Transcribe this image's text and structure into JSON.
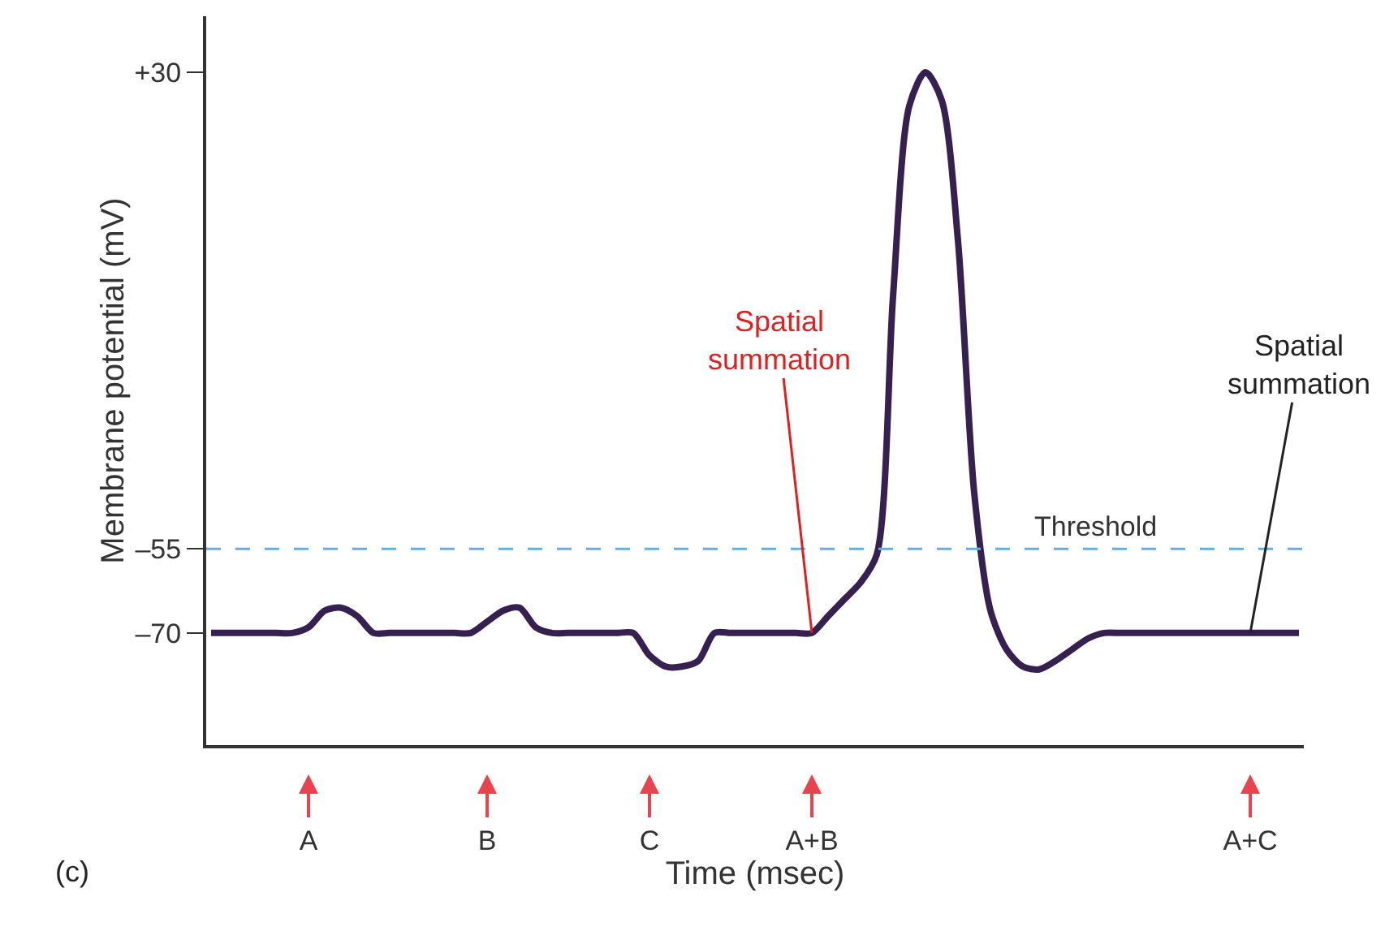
{
  "chart_data": {
    "type": "line",
    "xlabel": "Time (msec)",
    "ylabel": "Membrane potential (mV)",
    "categories": [
      null,
      null,
      null,
      null,
      null,
      null,
      "A",
      null,
      null,
      null,
      null,
      null,
      null,
      null,
      null,
      null,
      null,
      "B",
      null,
      null,
      null,
      null,
      null,
      null,
      null,
      null,
      null,
      "C",
      null,
      null,
      null,
      null,
      null,
      null,
      null,
      null,
      null,
      "A+B",
      null,
      null,
      null,
      null,
      null,
      null,
      null,
      null,
      null,
      null,
      null,
      null,
      null,
      null,
      null,
      null,
      null,
      null,
      null,
      null,
      null,
      null,
      null,
      null,
      null,
      null,
      "A+C",
      null,
      null,
      null
    ],
    "series": [
      {
        "color": "#35204f",
        "values": [
          -70,
          -70,
          -70,
          -70,
          -70,
          -70,
          -69,
          -66,
          -65.5,
          -67,
          -70,
          -70,
          -70,
          -70,
          -70,
          -70,
          -70,
          -68,
          -66,
          -65.5,
          -69,
          -70,
          -70,
          -70,
          -70,
          -70,
          -70,
          -74,
          -76,
          -76,
          -75,
          -70,
          -70,
          -70,
          -70,
          -70,
          -70,
          -70,
          -67,
          -64,
          -61,
          -56,
          -10,
          24,
          30,
          25,
          0,
          -45,
          -66,
          -73,
          -76,
          -76.5,
          -75,
          -73,
          -71,
          -70,
          -70,
          -70,
          -70,
          -70,
          -70,
          -70,
          -70,
          -70,
          -70,
          -70,
          -70,
          -70
        ]
      }
    ],
    "ylim": [
      -90,
      40
    ],
    "yticks": [
      {
        "value": 30,
        "label": "+30"
      },
      {
        "value": -55,
        "label": "–55"
      },
      {
        "value": -70,
        "label": "–70"
      }
    ],
    "ref_lines": [
      {
        "axis": "y",
        "value": -55,
        "label": "Threshold",
        "color": "#5ab4e6",
        "line_style": "dashed"
      }
    ],
    "annotations": [
      {
        "text": "Spatial summation",
        "x": "A+B",
        "y": -70
      },
      {
        "text": "Spatial summation",
        "x": "A+C",
        "y": -70
      },
      "(c)"
    ],
    "grid": false,
    "marker": "none",
    "line_style": "solid"
  }
}
